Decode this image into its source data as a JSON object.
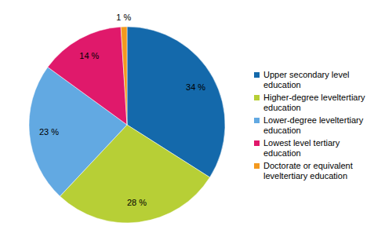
{
  "chart_data": {
    "type": "pie",
    "categories": [
      "Upper secondary level education",
      "Higher-degree leveltertiary education",
      "Lower-degree leveltertiary education",
      "Lowest level tertiary education",
      "Doctorate or equivalent leveltertiary education"
    ],
    "values": [
      34,
      28,
      23,
      14,
      1
    ],
    "value_labels": [
      "34 %",
      "28 %",
      "23 %",
      "14 %",
      "1 %"
    ],
    "colors": [
      "#1469ab",
      "#b7cf36",
      "#62a9e2",
      "#e0196b",
      "#f3991f"
    ],
    "data_labels": true,
    "legend": "right"
  }
}
